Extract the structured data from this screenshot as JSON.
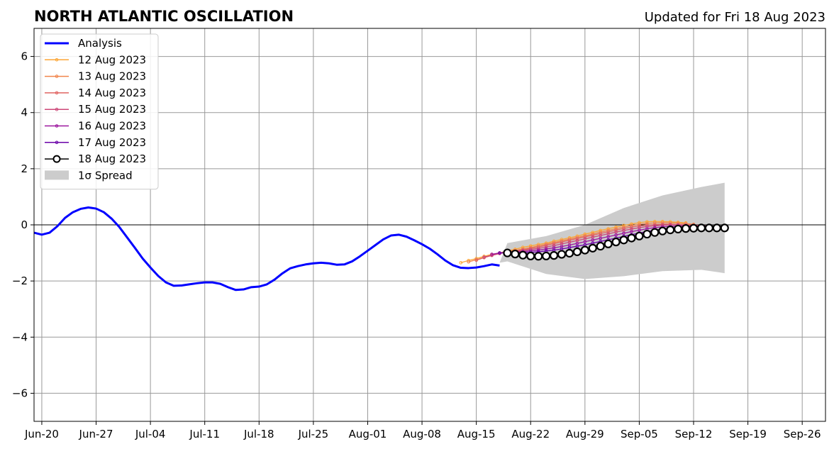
{
  "chart_data": {
    "type": "line",
    "title": "NORTH ATLANTIC OSCILLATION",
    "subtitle": "Updated for Fri 18 Aug 2023",
    "xlabel": "",
    "ylabel": "",
    "xlim": [
      "2023-06-19",
      "2023-09-29"
    ],
    "ylim": [
      -7,
      7
    ],
    "x_ticks": [
      "Jun-20",
      "Jun-27",
      "Jul-04",
      "Jul-11",
      "Jul-18",
      "Jul-25",
      "Aug-01",
      "Aug-08",
      "Aug-15",
      "Aug-22",
      "Aug-29",
      "Sep-05",
      "Sep-12",
      "Sep-19",
      "Sep-26"
    ],
    "x_tick_dates": [
      "2023-06-20",
      "2023-06-27",
      "2023-07-04",
      "2023-07-11",
      "2023-07-18",
      "2023-07-25",
      "2023-08-01",
      "2023-08-08",
      "2023-08-15",
      "2023-08-22",
      "2023-08-29",
      "2023-09-05",
      "2023-09-12",
      "2023-09-19",
      "2023-09-26"
    ],
    "y_ticks": [
      "6",
      "4",
      "2",
      "0",
      "−2",
      "−4",
      "−6"
    ],
    "y_tick_values": [
      6,
      4,
      2,
      0,
      -2,
      -4,
      -6
    ],
    "grid": true,
    "legend_position": "top-left",
    "colors": {
      "analysis": "#0000ff",
      "spread": "#cccccc",
      "zero_line": "#000000",
      "grid": "#999999"
    },
    "analysis": {
      "name": "Analysis",
      "color": "#0000ff",
      "x": [
        "2023-06-19",
        "2023-06-20",
        "2023-06-21",
        "2023-06-22",
        "2023-06-23",
        "2023-06-24",
        "2023-06-25",
        "2023-06-26",
        "2023-06-27",
        "2023-06-28",
        "2023-06-29",
        "2023-06-30",
        "2023-07-01",
        "2023-07-02",
        "2023-07-03",
        "2023-07-04",
        "2023-07-05",
        "2023-07-06",
        "2023-07-07",
        "2023-07-08",
        "2023-07-09",
        "2023-07-10",
        "2023-07-11",
        "2023-07-12",
        "2023-07-13",
        "2023-07-14",
        "2023-07-15",
        "2023-07-16",
        "2023-07-17",
        "2023-07-18",
        "2023-07-19",
        "2023-07-20",
        "2023-07-21",
        "2023-07-22",
        "2023-07-23",
        "2023-07-24",
        "2023-07-25",
        "2023-07-26",
        "2023-07-27",
        "2023-07-28",
        "2023-07-29",
        "2023-07-30",
        "2023-07-31",
        "2023-08-01",
        "2023-08-02",
        "2023-08-03",
        "2023-08-04",
        "2023-08-05",
        "2023-08-06",
        "2023-08-07",
        "2023-08-08",
        "2023-08-09",
        "2023-08-10",
        "2023-08-11",
        "2023-08-12",
        "2023-08-13",
        "2023-08-14",
        "2023-08-15",
        "2023-08-16",
        "2023-08-17",
        "2023-08-18"
      ],
      "values": [
        -0.28,
        -0.35,
        -0.28,
        -0.05,
        0.25,
        0.45,
        0.57,
        0.62,
        0.58,
        0.45,
        0.22,
        -0.08,
        -0.45,
        -0.82,
        -1.2,
        -1.52,
        -1.82,
        -2.05,
        -2.17,
        -2.16,
        -2.12,
        -2.08,
        -2.05,
        -2.05,
        -2.1,
        -2.22,
        -2.32,
        -2.3,
        -2.22,
        -2.2,
        -2.12,
        -1.95,
        -1.73,
        -1.55,
        -1.47,
        -1.41,
        -1.37,
        -1.35,
        -1.37,
        -1.42,
        -1.41,
        -1.3,
        -1.12,
        -0.92,
        -0.72,
        -0.52,
        -0.38,
        -0.35,
        -0.42,
        -0.55,
        -0.69,
        -0.85,
        -1.05,
        -1.27,
        -1.44,
        -1.53,
        -1.54,
        -1.52,
        -1.47,
        -1.41,
        -1.45
      ]
    },
    "spread": {
      "name": "1σ Spread",
      "color": "#cccccc",
      "x": [
        "2023-08-18",
        "2023-08-19",
        "2023-08-24",
        "2023-08-29",
        "2023-09-03",
        "2023-09-08",
        "2023-09-13",
        "2023-09-16"
      ],
      "upper": [
        -1.35,
        -0.65,
        -0.4,
        0.0,
        0.6,
        1.05,
        1.35,
        1.5
      ],
      "lower": [
        -1.35,
        -1.3,
        -1.75,
        -1.93,
        -1.83,
        -1.65,
        -1.6,
        -1.72
      ]
    },
    "series": [
      {
        "name": "12 Aug 2023",
        "color": "#fca636",
        "x": [
          "2023-08-13",
          "2023-08-14",
          "2023-08-15",
          "2023-08-16",
          "2023-08-17",
          "2023-08-18",
          "2023-08-19",
          "2023-08-20",
          "2023-08-21",
          "2023-08-22",
          "2023-08-23",
          "2023-08-24",
          "2023-08-25",
          "2023-08-26",
          "2023-08-27",
          "2023-08-28",
          "2023-08-29",
          "2023-08-30",
          "2023-08-31",
          "2023-09-01",
          "2023-09-02",
          "2023-09-03",
          "2023-09-04",
          "2023-09-05",
          "2023-09-06",
          "2023-09-07",
          "2023-09-08",
          "2023-09-09",
          "2023-09-10",
          "2023-09-11"
        ],
        "values": [
          -1.35,
          -1.27,
          -1.2,
          -1.12,
          -1.05,
          -1.0,
          -0.93,
          -0.87,
          -0.8,
          -0.75,
          -0.7,
          -0.65,
          -0.58,
          -0.52,
          -0.46,
          -0.4,
          -0.33,
          -0.27,
          -0.2,
          -0.14,
          -0.08,
          -0.02,
          0.03,
          0.08,
          0.11,
          0.12,
          0.12,
          0.11,
          0.09,
          0.07
        ]
      },
      {
        "name": "13 Aug 2023",
        "color": "#f1844b",
        "x": [
          "2023-08-14",
          "2023-08-15",
          "2023-08-16",
          "2023-08-17",
          "2023-08-18",
          "2023-08-19",
          "2023-08-20",
          "2023-08-21",
          "2023-08-22",
          "2023-08-23",
          "2023-08-24",
          "2023-08-25",
          "2023-08-26",
          "2023-08-27",
          "2023-08-28",
          "2023-08-29",
          "2023-08-30",
          "2023-08-31",
          "2023-09-01",
          "2023-09-02",
          "2023-09-03",
          "2023-09-04",
          "2023-09-05",
          "2023-09-06",
          "2023-09-07",
          "2023-09-08",
          "2023-09-09",
          "2023-09-10",
          "2023-09-11",
          "2023-09-12"
        ],
        "values": [
          -1.32,
          -1.24,
          -1.16,
          -1.09,
          -1.02,
          -0.96,
          -0.91,
          -0.86,
          -0.81,
          -0.75,
          -0.69,
          -0.63,
          -0.57,
          -0.51,
          -0.45,
          -0.39,
          -0.33,
          -0.26,
          -0.2,
          -0.14,
          -0.08,
          -0.03,
          0.02,
          0.05,
          0.07,
          0.08,
          0.07,
          0.06,
          0.04,
          0.02
        ]
      },
      {
        "name": "14 Aug 2023",
        "color": "#e16462",
        "x": [
          "2023-08-15",
          "2023-08-16",
          "2023-08-17",
          "2023-08-18",
          "2023-08-19",
          "2023-08-20",
          "2023-08-21",
          "2023-08-22",
          "2023-08-23",
          "2023-08-24",
          "2023-08-25",
          "2023-08-26",
          "2023-08-27",
          "2023-08-28",
          "2023-08-29",
          "2023-08-30",
          "2023-08-31",
          "2023-09-01",
          "2023-09-02",
          "2023-09-03",
          "2023-09-04",
          "2023-09-05",
          "2023-09-06",
          "2023-09-07",
          "2023-09-08",
          "2023-09-09",
          "2023-09-10",
          "2023-09-11",
          "2023-09-12",
          "2023-09-13"
        ],
        "values": [
          -1.26,
          -1.17,
          -1.09,
          -1.02,
          -0.97,
          -0.93,
          -0.89,
          -0.84,
          -0.79,
          -0.73,
          -0.67,
          -0.61,
          -0.55,
          -0.49,
          -0.43,
          -0.37,
          -0.31,
          -0.25,
          -0.19,
          -0.13,
          -0.08,
          -0.04,
          -0.01,
          0.01,
          0.02,
          0.02,
          0.01,
          0.0,
          -0.01,
          -0.02
        ]
      },
      {
        "name": "15 Aug 2023",
        "color": "#cc4778",
        "x": [
          "2023-08-16",
          "2023-08-17",
          "2023-08-18",
          "2023-08-19",
          "2023-08-20",
          "2023-08-21",
          "2023-08-22",
          "2023-08-23",
          "2023-08-24",
          "2023-08-25",
          "2023-08-26",
          "2023-08-27",
          "2023-08-28",
          "2023-08-29",
          "2023-08-30",
          "2023-08-31",
          "2023-09-01",
          "2023-09-02",
          "2023-09-03",
          "2023-09-04",
          "2023-09-05",
          "2023-09-06",
          "2023-09-07",
          "2023-09-08",
          "2023-09-09",
          "2023-09-10",
          "2023-09-11",
          "2023-09-12",
          "2023-09-13",
          "2023-09-14"
        ],
        "values": [
          -1.15,
          -1.08,
          -1.02,
          -0.98,
          -0.95,
          -0.92,
          -0.88,
          -0.84,
          -0.79,
          -0.74,
          -0.68,
          -0.62,
          -0.56,
          -0.5,
          -0.44,
          -0.38,
          -0.32,
          -0.26,
          -0.2,
          -0.15,
          -0.1,
          -0.06,
          -0.03,
          -0.01,
          0.0,
          0.0,
          -0.01,
          -0.02,
          -0.03,
          -0.04
        ]
      },
      {
        "name": "16 Aug 2023",
        "color": "#9c179e",
        "x": [
          "2023-08-17",
          "2023-08-18",
          "2023-08-19",
          "2023-08-20",
          "2023-08-21",
          "2023-08-22",
          "2023-08-23",
          "2023-08-24",
          "2023-08-25",
          "2023-08-26",
          "2023-08-27",
          "2023-08-28",
          "2023-08-29",
          "2023-08-30",
          "2023-08-31",
          "2023-09-01",
          "2023-09-02",
          "2023-09-03",
          "2023-09-04",
          "2023-09-05",
          "2023-09-06",
          "2023-09-07",
          "2023-09-08",
          "2023-09-09",
          "2023-09-10",
          "2023-09-11",
          "2023-09-12",
          "2023-09-13",
          "2023-09-14",
          "2023-09-15"
        ],
        "values": [
          -1.05,
          -1.0,
          -0.98,
          -0.97,
          -0.95,
          -0.93,
          -0.9,
          -0.86,
          -0.82,
          -0.77,
          -0.72,
          -0.66,
          -0.6,
          -0.54,
          -0.48,
          -0.42,
          -0.36,
          -0.3,
          -0.24,
          -0.19,
          -0.14,
          -0.1,
          -0.07,
          -0.05,
          -0.04,
          -0.04,
          -0.05,
          -0.06,
          -0.07,
          -0.08
        ]
      },
      {
        "name": "17 Aug 2023",
        "color": "#6a00a8",
        "x": [
          "2023-08-18",
          "2023-08-19",
          "2023-08-20",
          "2023-08-21",
          "2023-08-22",
          "2023-08-23",
          "2023-08-24",
          "2023-08-25",
          "2023-08-26",
          "2023-08-27",
          "2023-08-28",
          "2023-08-29",
          "2023-08-30",
          "2023-08-31",
          "2023-09-01",
          "2023-09-02",
          "2023-09-03",
          "2023-09-04",
          "2023-09-05",
          "2023-09-06",
          "2023-09-07",
          "2023-09-08",
          "2023-09-09",
          "2023-09-10",
          "2023-09-11",
          "2023-09-12",
          "2023-09-13",
          "2023-09-14",
          "2023-09-15",
          "2023-09-16"
        ],
        "values": [
          -1.0,
          -0.99,
          -0.99,
          -0.99,
          -0.98,
          -0.96,
          -0.93,
          -0.9,
          -0.86,
          -0.81,
          -0.76,
          -0.71,
          -0.65,
          -0.59,
          -0.53,
          -0.47,
          -0.41,
          -0.35,
          -0.29,
          -0.24,
          -0.19,
          -0.15,
          -0.12,
          -0.1,
          -0.09,
          -0.09,
          -0.1,
          -0.11,
          -0.12,
          -0.12
        ]
      },
      {
        "name": "18 Aug 2023",
        "color": "#000000",
        "markers": "open-circle",
        "x": [
          "2023-08-19",
          "2023-08-20",
          "2023-08-21",
          "2023-08-22",
          "2023-08-23",
          "2023-08-24",
          "2023-08-25",
          "2023-08-26",
          "2023-08-27",
          "2023-08-28",
          "2023-08-29",
          "2023-08-30",
          "2023-08-31",
          "2023-09-01",
          "2023-09-02",
          "2023-09-03",
          "2023-09-04",
          "2023-09-05",
          "2023-09-06",
          "2023-09-07",
          "2023-09-08",
          "2023-09-09",
          "2023-09-10",
          "2023-09-11",
          "2023-09-12",
          "2023-09-13",
          "2023-09-14",
          "2023-09-15",
          "2023-09-16"
        ],
        "values": [
          -1.0,
          -1.04,
          -1.08,
          -1.11,
          -1.12,
          -1.11,
          -1.09,
          -1.05,
          -1.01,
          -0.96,
          -0.9,
          -0.83,
          -0.76,
          -0.68,
          -0.61,
          -0.54,
          -0.47,
          -0.4,
          -0.33,
          -0.27,
          -0.22,
          -0.18,
          -0.15,
          -0.13,
          -0.12,
          -0.11,
          -0.11,
          -0.11,
          -0.11
        ]
      }
    ]
  }
}
